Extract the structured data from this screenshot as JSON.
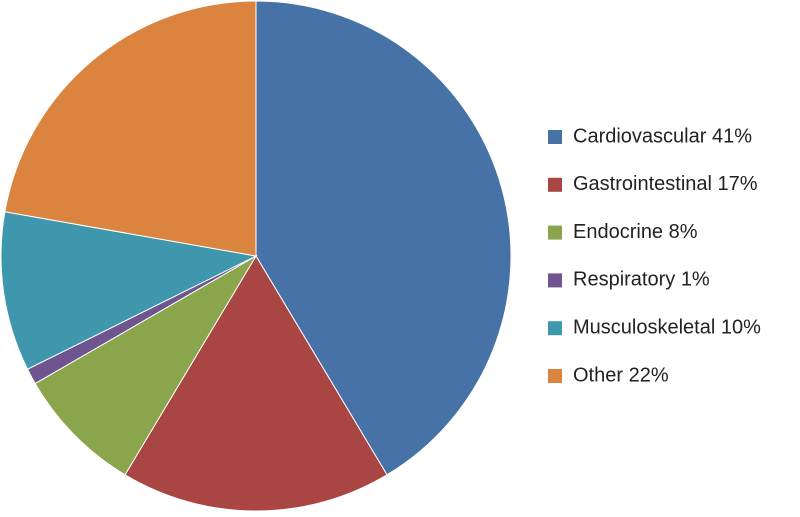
{
  "chart_data": {
    "type": "pie",
    "categories": [
      "Cardiovascular 41%",
      "Gastrointestinal 17%",
      "Endocrine 8%",
      "Respiratory 1%",
      "Musculoskeletal 10%",
      "Other 22%"
    ],
    "values": [
      41,
      17,
      8,
      1,
      10,
      22
    ],
    "colors": [
      "#4672a8",
      "#a94543",
      "#8aa54b",
      "#6e558f",
      "#3f97ae",
      "#da8440"
    ],
    "legend": "right"
  }
}
